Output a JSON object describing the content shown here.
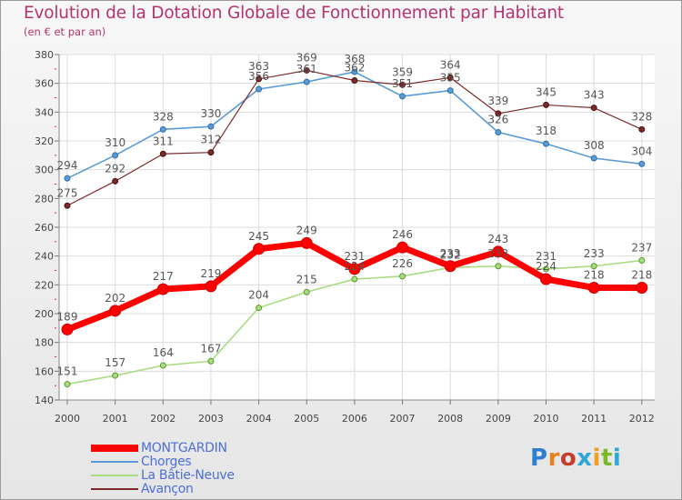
{
  "header": {
    "title": "Evolution de la Dotation Globale de Fonctionnement par Habitant",
    "subtitle": "(en € et par an)"
  },
  "brand": {
    "logo_text": "Proxiti"
  },
  "chart_data": {
    "type": "line",
    "title": "Evolution de la Dotation Globale de Fonctionnement par Habitant",
    "subtitle": "(en € et par an)",
    "x": [
      2000,
      2001,
      2002,
      2003,
      2004,
      2005,
      2006,
      2007,
      2008,
      2009,
      2010,
      2011,
      2012
    ],
    "ylim": [
      140,
      380
    ],
    "yticks": [
      140,
      160,
      180,
      200,
      220,
      240,
      260,
      280,
      300,
      320,
      340,
      360,
      380
    ],
    "grid": true,
    "legend_position": "bottom-left",
    "series": [
      {
        "name": "MONTGARDIN",
        "color": "#ff0000",
        "values": [
          189,
          202,
          217,
          219,
          245,
          249,
          231,
          246,
          233,
          243,
          224,
          218,
          218
        ]
      },
      {
        "name": "Chorges",
        "color": "#5a9bd5",
        "values": [
          294,
          310,
          328,
          330,
          356,
          361,
          368,
          351,
          355,
          326,
          318,
          308,
          304
        ]
      },
      {
        "name": "La Bâtie-Neuve",
        "color": "#a8dc82",
        "values": [
          151,
          157,
          164,
          167,
          204,
          215,
          224,
          226,
          232,
          233,
          231,
          233,
          237
        ]
      },
      {
        "name": "Avançon",
        "color": "#7a2a2a",
        "values": [
          275,
          292,
          311,
          312,
          363,
          369,
          362,
          359,
          364,
          339,
          345,
          343,
          328
        ]
      }
    ]
  }
}
